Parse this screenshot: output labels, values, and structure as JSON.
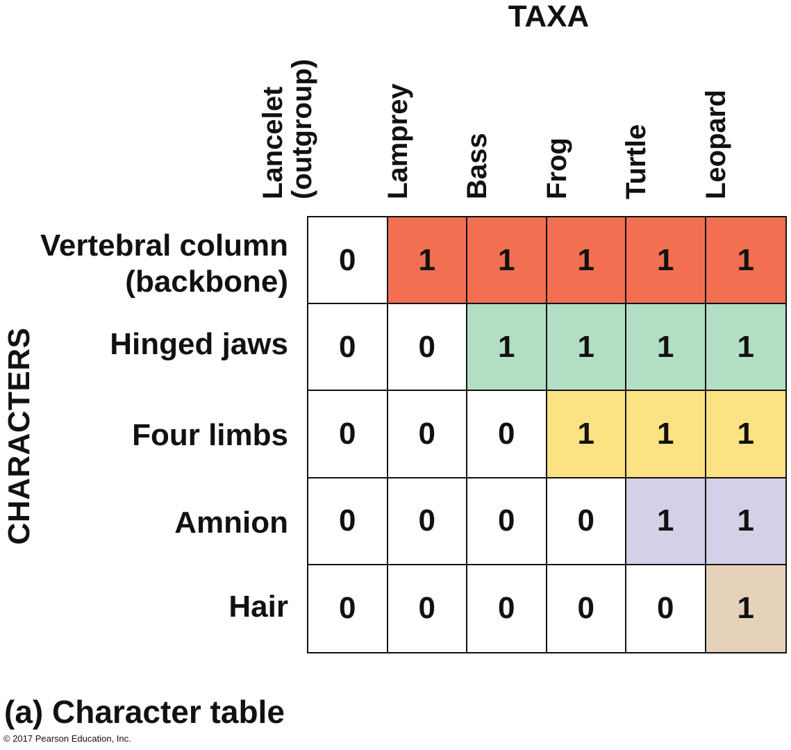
{
  "taxa_title": "TAXA",
  "characters_title": "CHARACTERS",
  "taxa": [
    {
      "line1": "Lancelet",
      "line2": "(outgroup)"
    },
    {
      "line1": "Lamprey"
    },
    {
      "line1": "Bass"
    },
    {
      "line1": "Frog"
    },
    {
      "line1": "Turtle"
    },
    {
      "line1": "Leopard"
    }
  ],
  "characters": [
    {
      "line1": "Vertebral column",
      "line2": "(backbone)",
      "color": "#f26f52",
      "values": [
        "0",
        "1",
        "1",
        "1",
        "1",
        "1"
      ]
    },
    {
      "line1": "Hinged jaws",
      "color": "#b2dfc4",
      "values": [
        "0",
        "0",
        "1",
        "1",
        "1",
        "1"
      ]
    },
    {
      "line1": "Four limbs",
      "color": "#fde283",
      "values": [
        "0",
        "0",
        "0",
        "1",
        "1",
        "1"
      ]
    },
    {
      "line1": "Amnion",
      "color": "#d3d1e8",
      "values": [
        "0",
        "0",
        "0",
        "0",
        "1",
        "1"
      ]
    },
    {
      "line1": "Hair",
      "color": "#e6d2bb",
      "values": [
        "0",
        "0",
        "0",
        "0",
        "0",
        "1"
      ]
    }
  ],
  "caption": "(a) Character table",
  "copyright": "© 2017 Pearson Education, Inc."
}
